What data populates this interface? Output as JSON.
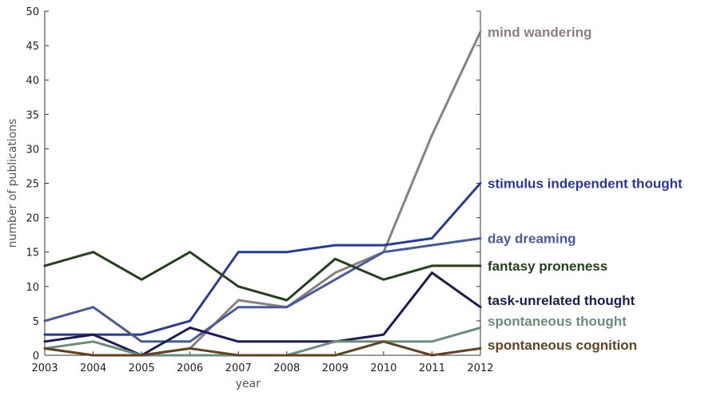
{
  "chart_data": {
    "type": "line",
    "xlabel": "year",
    "ylabel": "number of publications",
    "xlim": [
      2003,
      2012
    ],
    "ylim": [
      0,
      50
    ],
    "x": [
      2003,
      2004,
      2005,
      2006,
      2007,
      2008,
      2009,
      2010,
      2011,
      2012
    ],
    "yticks": [
      0,
      5,
      10,
      15,
      20,
      25,
      30,
      35,
      40,
      45,
      50
    ],
    "grid": false,
    "legend": "direct labels at right end of lines",
    "series": [
      {
        "name": "mind wandering",
        "color": "#8c7f7f",
        "label_value": 47,
        "values": [
          1,
          0,
          0,
          1,
          8,
          7,
          12,
          15,
          32,
          47
        ]
      },
      {
        "name": "stimulus independent thought",
        "color": "#2a3a8c",
        "label_value": 25,
        "values": [
          3,
          3,
          3,
          5,
          15,
          15,
          16,
          16,
          17,
          25
        ]
      },
      {
        "name": "day dreaming",
        "color": "#4a5a96",
        "label_value": 17,
        "values": [
          5,
          7,
          2,
          2,
          7,
          7,
          11,
          15,
          16,
          17
        ]
      },
      {
        "name": "fantasy proneness",
        "color": "#24401f",
        "label_value": 13,
        "values": [
          13,
          15,
          11,
          15,
          10,
          8,
          14,
          11,
          13,
          13
        ]
      },
      {
        "name": "task-unrelated thought",
        "color": "#1c1c50",
        "label_value": 8,
        "values": [
          2,
          3,
          0,
          4,
          2,
          2,
          2,
          3,
          12,
          7
        ]
      },
      {
        "name": "spontaneous thought",
        "color": "#6e8c7c",
        "label_value": 5,
        "values": [
          1,
          2,
          0,
          0,
          0,
          0,
          2,
          2,
          2,
          4
        ]
      },
      {
        "name": "spontaneous cognition",
        "color": "#5e4326",
        "label_value": 1.5,
        "values": [
          1,
          0,
          0,
          1,
          0,
          0,
          0,
          2,
          0,
          1
        ]
      }
    ]
  }
}
